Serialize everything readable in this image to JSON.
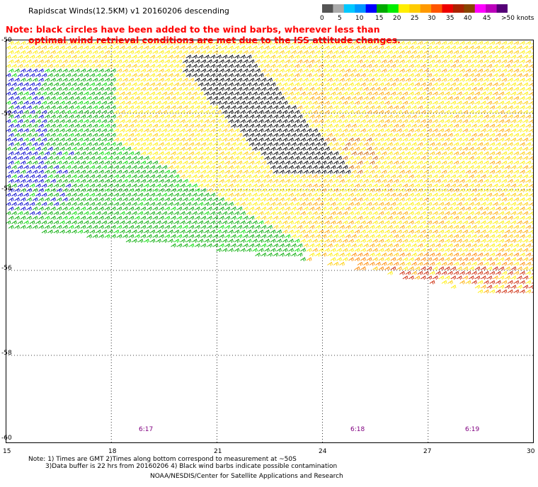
{
  "header": {
    "title": "Rapidscat Winds(12.5KM) v1 20160206 descending"
  },
  "colorbar": {
    "colors": [
      "#555555",
      "#aaaaaa",
      "#00c8ff",
      "#0096ff",
      "#0000ff",
      "#00aa00",
      "#00ee00",
      "#ffee00",
      "#ffcc00",
      "#ff9900",
      "#ff5500",
      "#ee0000",
      "#aa2200",
      "#884400",
      "#ff00ff",
      "#bb00bb",
      "#550077"
    ],
    "labels": [
      "0",
      "5",
      "10",
      "15",
      "20",
      "25",
      "30",
      "35",
      "40",
      "45",
      ">50 knots"
    ]
  },
  "note": {
    "line1": "Note: black circles have been added to the wind barbs, wherever less than",
    "line2": "optimal wind retrieval conditions are met due to the ISS attitude changes."
  },
  "map": {
    "y_axis_labels": [
      "-50",
      "-52",
      "-54",
      "-56",
      "-58",
      "-60"
    ],
    "x_axis_labels": [
      "15",
      "18",
      "21",
      "24",
      "27",
      "30"
    ],
    "lat_range": [
      -60,
      -50
    ],
    "lon_range": [
      15,
      30
    ],
    "time_labels": [
      "6:17",
      "6:18",
      "6:19"
    ],
    "grid": "dotted"
  },
  "footer": {
    "line1": "Note: 1) Times are GMT 2)Times along bottom correspond to measurement at ~50S",
    "line2": "3)Data buffer is 22 hrs from 20160206 4) Black wind barbs indicate possible contamination",
    "credit": "NOAA/NESDIS/Center for Satellite Applications and Research"
  }
}
